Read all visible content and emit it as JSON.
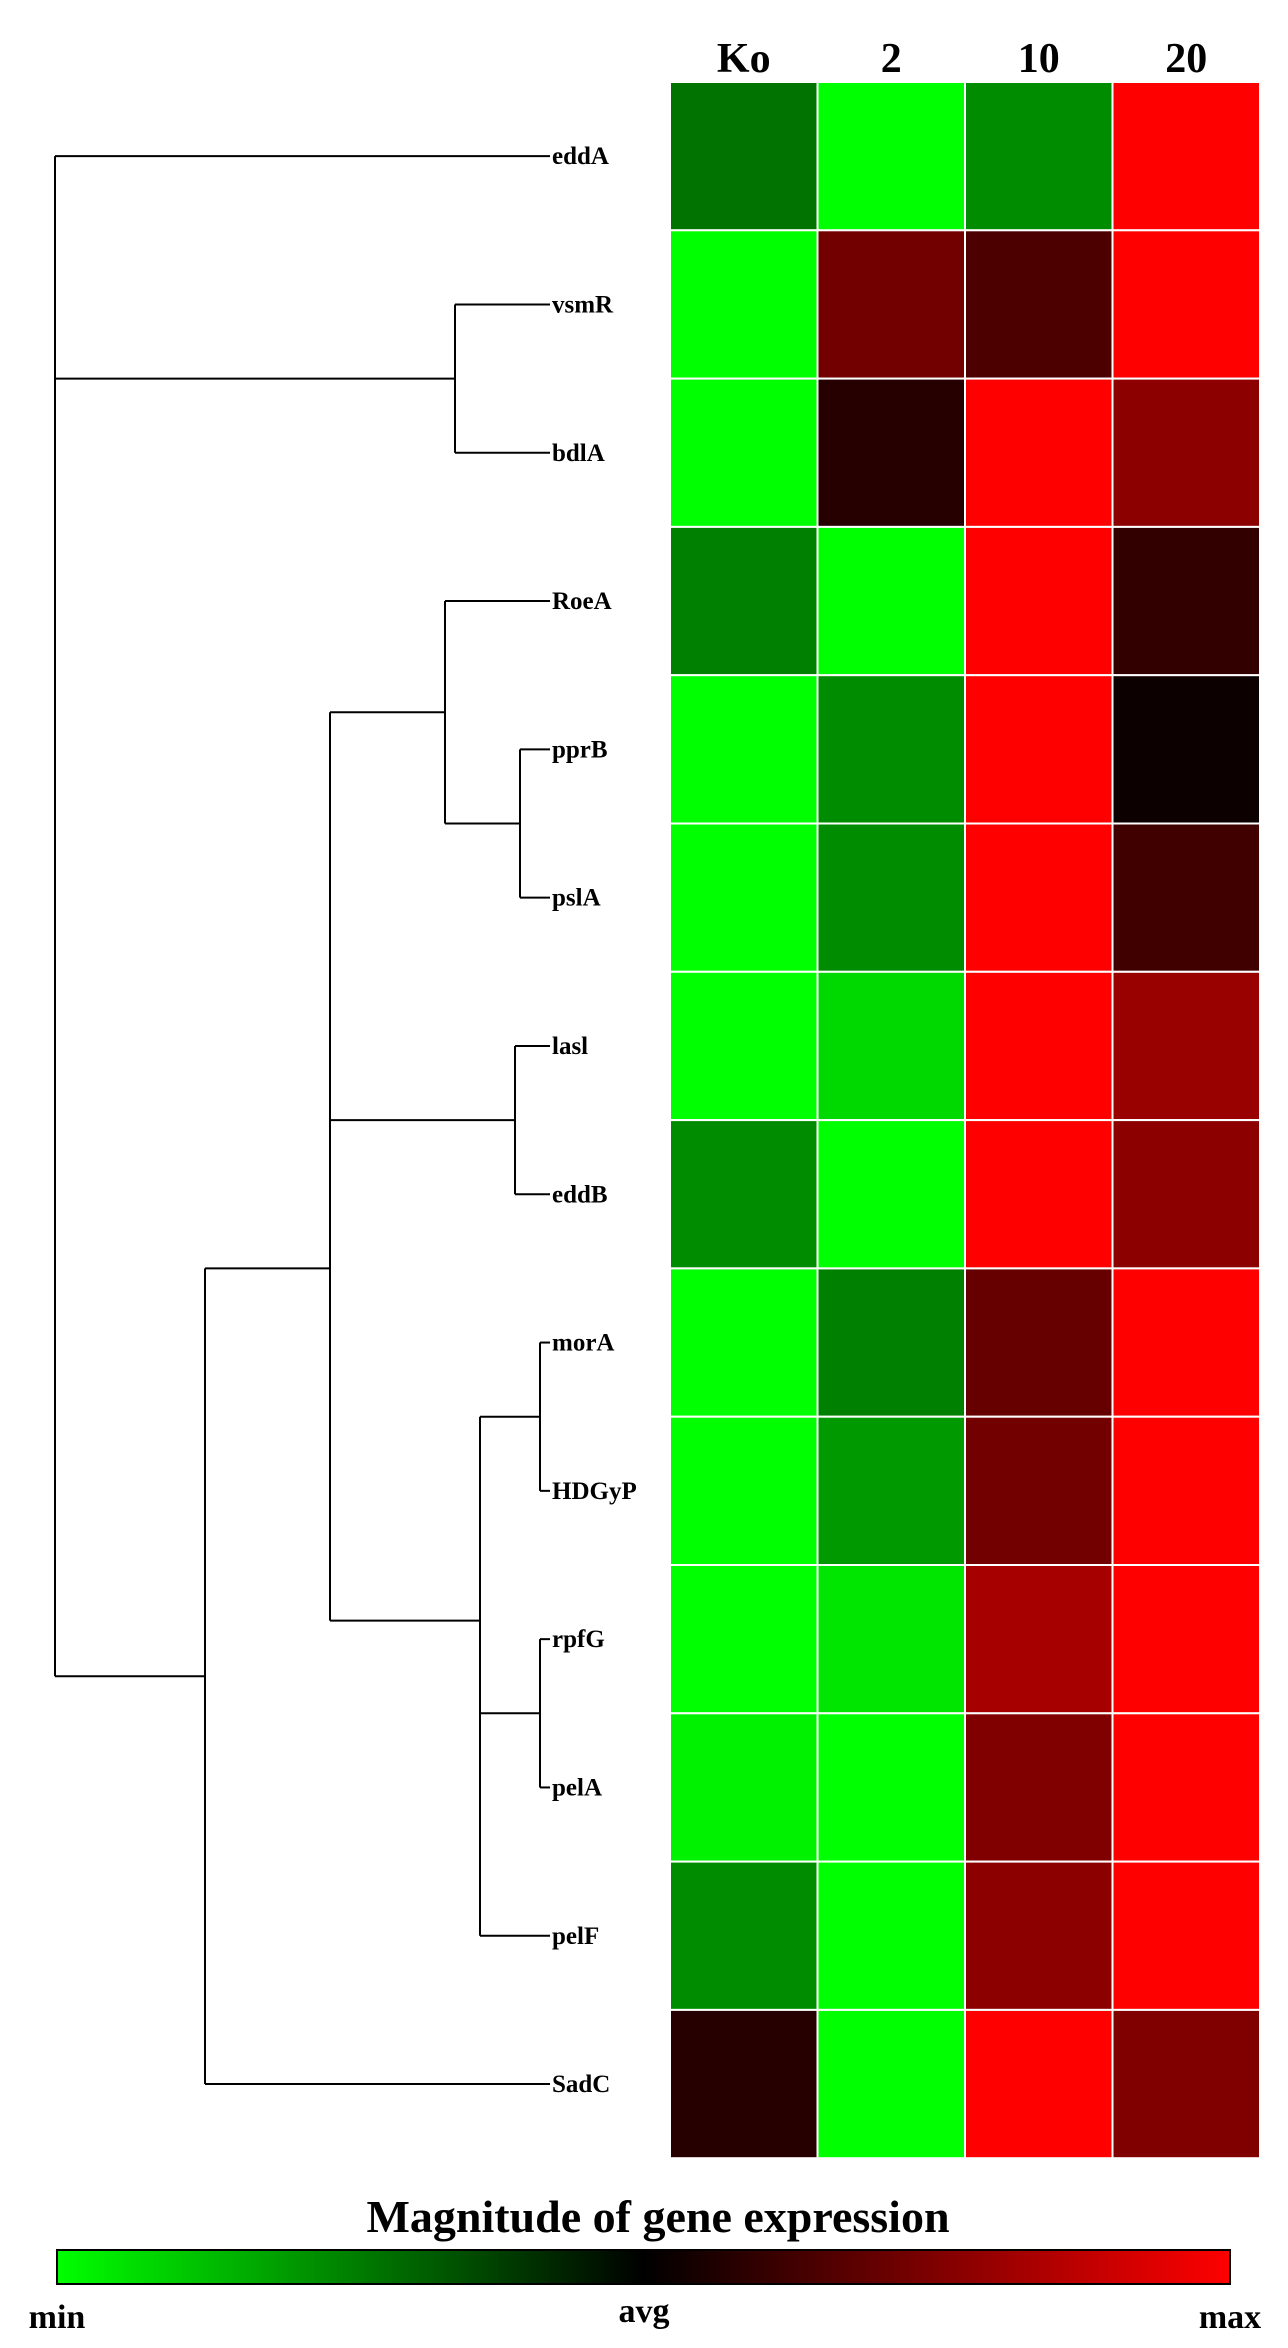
{
  "chart_data": {
    "type": "heatmap",
    "columns": [
      "Ko",
      "2",
      "10",
      "20"
    ],
    "rows": [
      "eddA",
      "vsmR",
      "bdlA",
      "RoeA",
      "pprB",
      "pslA",
      "lasl",
      "eddB",
      "morA",
      "HDGyP",
      "rpfG",
      "pelA",
      "pelF",
      "SadC"
    ],
    "values": [
      [
        -0.45,
        -1.0,
        -0.55,
        1.0
      ],
      [
        -1.0,
        0.45,
        0.3,
        1.0
      ],
      [
        -1.0,
        0.15,
        1.0,
        0.55
      ],
      [
        -0.5,
        -1.0,
        1.0,
        0.2
      ],
      [
        -1.0,
        -0.55,
        1.0,
        0.05
      ],
      [
        -1.0,
        -0.55,
        1.0,
        0.25
      ],
      [
        -1.0,
        -0.85,
        1.0,
        0.6
      ],
      [
        -0.55,
        -1.0,
        1.0,
        0.55
      ],
      [
        -1.0,
        -0.5,
        0.4,
        1.0
      ],
      [
        -1.0,
        -0.6,
        0.45,
        1.0
      ],
      [
        -1.0,
        -0.9,
        0.65,
        1.0
      ],
      [
        -0.95,
        -1.0,
        0.5,
        1.0
      ],
      [
        -0.55,
        -1.0,
        0.55,
        1.0
      ],
      [
        0.15,
        -1.0,
        1.0,
        0.5
      ]
    ],
    "color_scale": {
      "min_color": "#00ff00",
      "mid_color": "#000000",
      "max_color": "#ff0000"
    },
    "legend": {
      "title": "Magnitude of gene expression",
      "min_label": "min",
      "mid_label": "avg",
      "max_label": "max"
    },
    "row_dendrogram": true
  }
}
